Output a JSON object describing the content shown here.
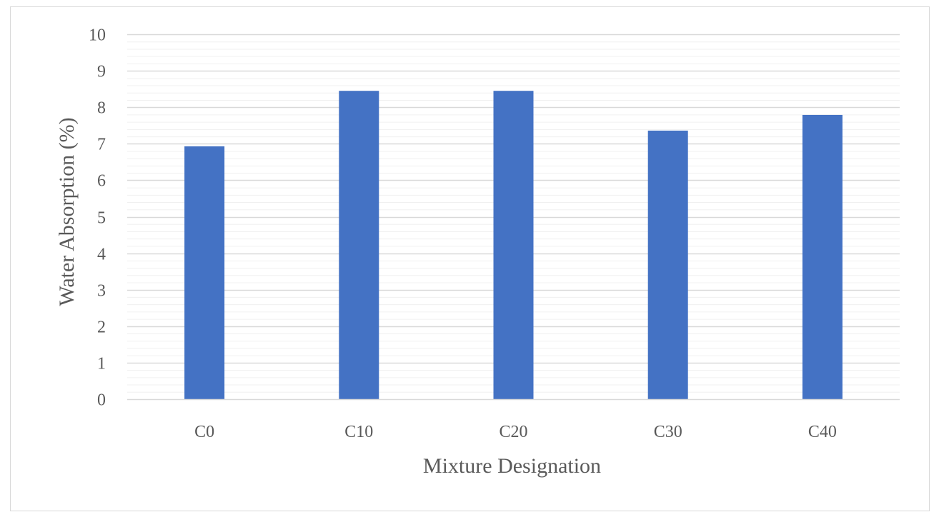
{
  "chart_data": {
    "type": "bar",
    "title": "",
    "xlabel": "Mixture Designation",
    "ylabel": "Water Absorption (%)",
    "categories": [
      "C0",
      "C10",
      "C20",
      "C30",
      "C40"
    ],
    "values": [
      6.93,
      8.45,
      8.45,
      7.36,
      7.79
    ],
    "ylim": [
      0,
      10
    ],
    "yticks": [
      0,
      1,
      2,
      3,
      4,
      5,
      6,
      7,
      8,
      9,
      10
    ],
    "minor_grid_step": 0.2,
    "grid": true,
    "legend": "none",
    "bar_color": "#4472c4",
    "major_grid_color": "#d9d9d9",
    "minor_grid_color": "#f0f0f0",
    "text_color": "#595959"
  }
}
